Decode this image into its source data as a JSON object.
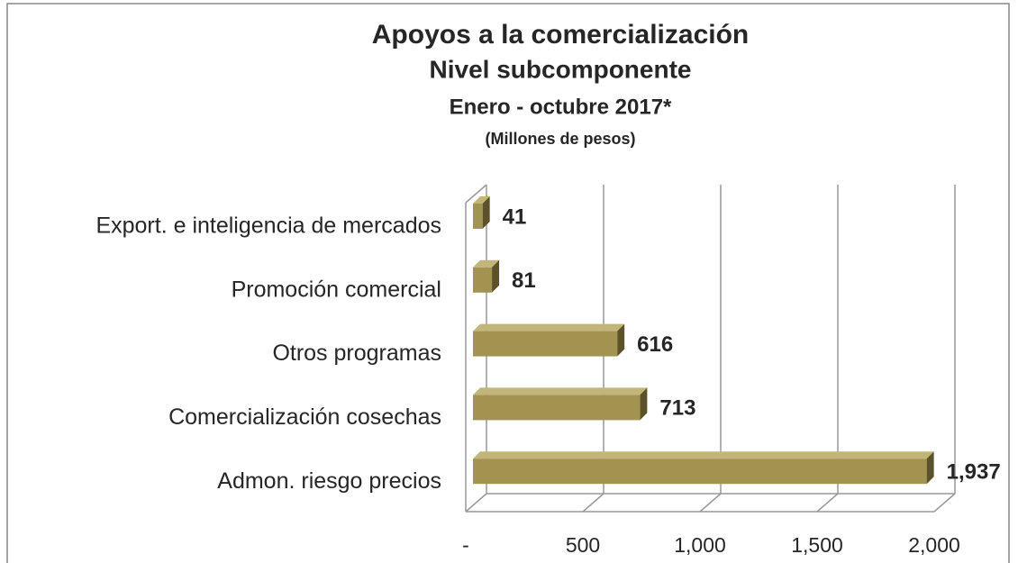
{
  "chart_data": {
    "type": "bar",
    "orientation": "horizontal",
    "title": "Apoyos a la comercialización",
    "subtitle": "Nivel subcomponente",
    "period": "Enero - octubre 2017*",
    "units": "(Millones de pesos)",
    "categories": [
      "Export. e inteligencia de mercados",
      "Promoción comercial",
      "Otros programas",
      "Comercialización cosechas",
      "Admon. riesgo precios"
    ],
    "values": [
      41,
      81,
      616,
      713,
      1937
    ],
    "value_labels": [
      "41",
      "81",
      "616",
      "713",
      "1,937"
    ],
    "color": "#a39350",
    "xlim": [
      0,
      2000
    ],
    "xticks": [
      {
        "value": 0,
        "label": "-"
      },
      500,
      {
        "value": 1000,
        "label": "1,000"
      },
      {
        "value": 1500,
        "label": "1,500"
      },
      {
        "value": 2000,
        "label": "2,000"
      }
    ],
    "grid": true
  }
}
